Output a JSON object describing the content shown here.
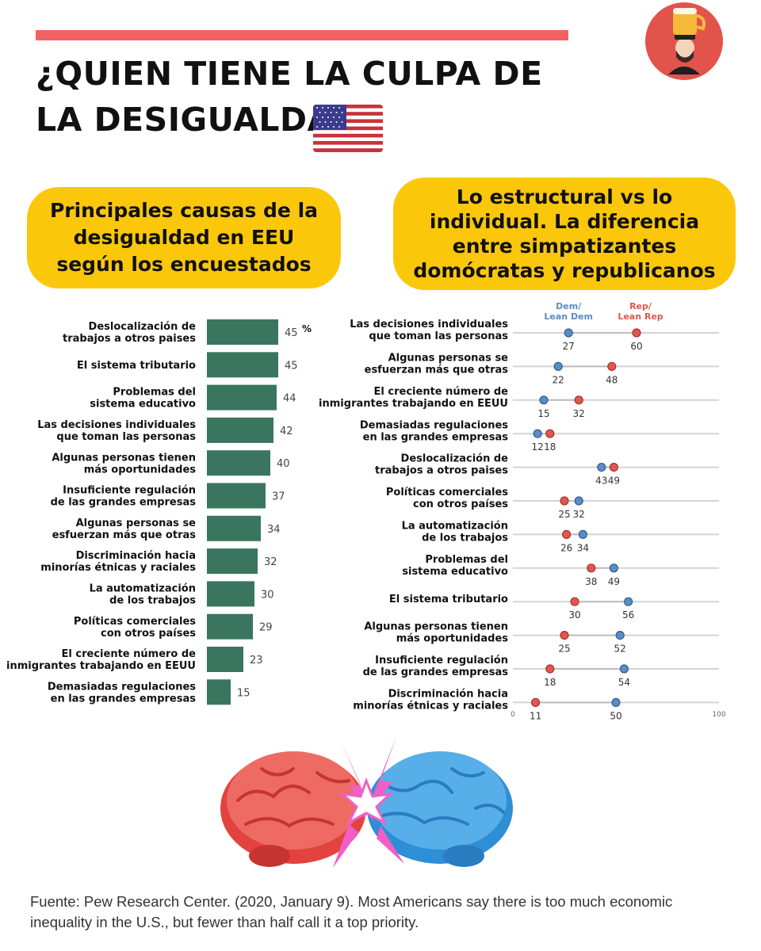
{
  "header": {
    "title": "¿QUIEN TIENE LA CULPA DE LA DESIGUALDAD?",
    "flag_icon": "us-flag-icon",
    "logo_icon": "beer-helmet-avatar-icon"
  },
  "left_panel": {
    "heading": "Principales causas de la desigualdad en EEU según los encuestados"
  },
  "right_panel": {
    "heading": "Lo estructural vs lo individual. La diferencia entre simpatizantes domócratas y republicanos"
  },
  "colors": {
    "accent": "#f06360",
    "pill": "#fbc70b",
    "bar": "#3a7560",
    "dem": "#5b8cc4",
    "rep": "#e0574f"
  },
  "chart_data": [
    {
      "type": "bar",
      "orientation": "horizontal",
      "unit": "%",
      "categories": [
        "Deslocalización de trabajos a otros paises",
        "El sistema tributario",
        "Problemas del sistema educativo",
        "Las decisiones individuales que toman las personas",
        "Algunas personas tienen más oportunidades",
        "Insuficiente regulación de las grandes empresas",
        "Algunas personas se esfuerzan más que otras",
        "Discriminación hacia minorías étnicas y raciales",
        "La automatización de los trabajos",
        "Políticas comerciales con otros países",
        "El creciente número de inmigrantes trabajando en EEUU",
        "Demasiadas regulaciones en las grandes empresas"
      ],
      "values": [
        45,
        45,
        44,
        42,
        40,
        37,
        34,
        32,
        30,
        29,
        23,
        15
      ],
      "xlim": [
        0,
        100
      ]
    },
    {
      "type": "scatter",
      "subtype": "dot-plot",
      "xlim": [
        0,
        100
      ],
      "tick_labels": [
        "0",
        "100"
      ],
      "categories": [
        "Las decisiones individuales que toman las personas",
        "Algunas personas se esfuerzan más que otras",
        "El creciente número de inmigrantes trabajando en EEUU",
        "Demasiadas regulaciones en las grandes empresas",
        "Deslocalización de trabajos a otros paises",
        "Políticas comerciales con otros países",
        "La automatización de los trabajos",
        "Problemas del sistema educativo",
        "El sistema tributario",
        "Algunas personas tienen más oportunidades",
        "Insuficiente regulación de las grandes empresas",
        "Discriminación hacia minorías étnicas y raciales"
      ],
      "series": [
        {
          "name": "Dem/ Lean Dem",
          "color": "#5b8cc4",
          "values": [
            27,
            22,
            15,
            12,
            43,
            32,
            34,
            49,
            56,
            52,
            54,
            50
          ]
        },
        {
          "name": "Rep/ Lean Rep",
          "color": "#e0574f",
          "values": [
            60,
            48,
            32,
            18,
            49,
            25,
            26,
            38,
            30,
            25,
            18,
            11
          ]
        }
      ]
    }
  ],
  "footnote": "Fuente: Pew Research Center. (2020, January 9). Most Americans say there is too much economic inequality in the U.S., but fewer than half call it a top priority."
}
